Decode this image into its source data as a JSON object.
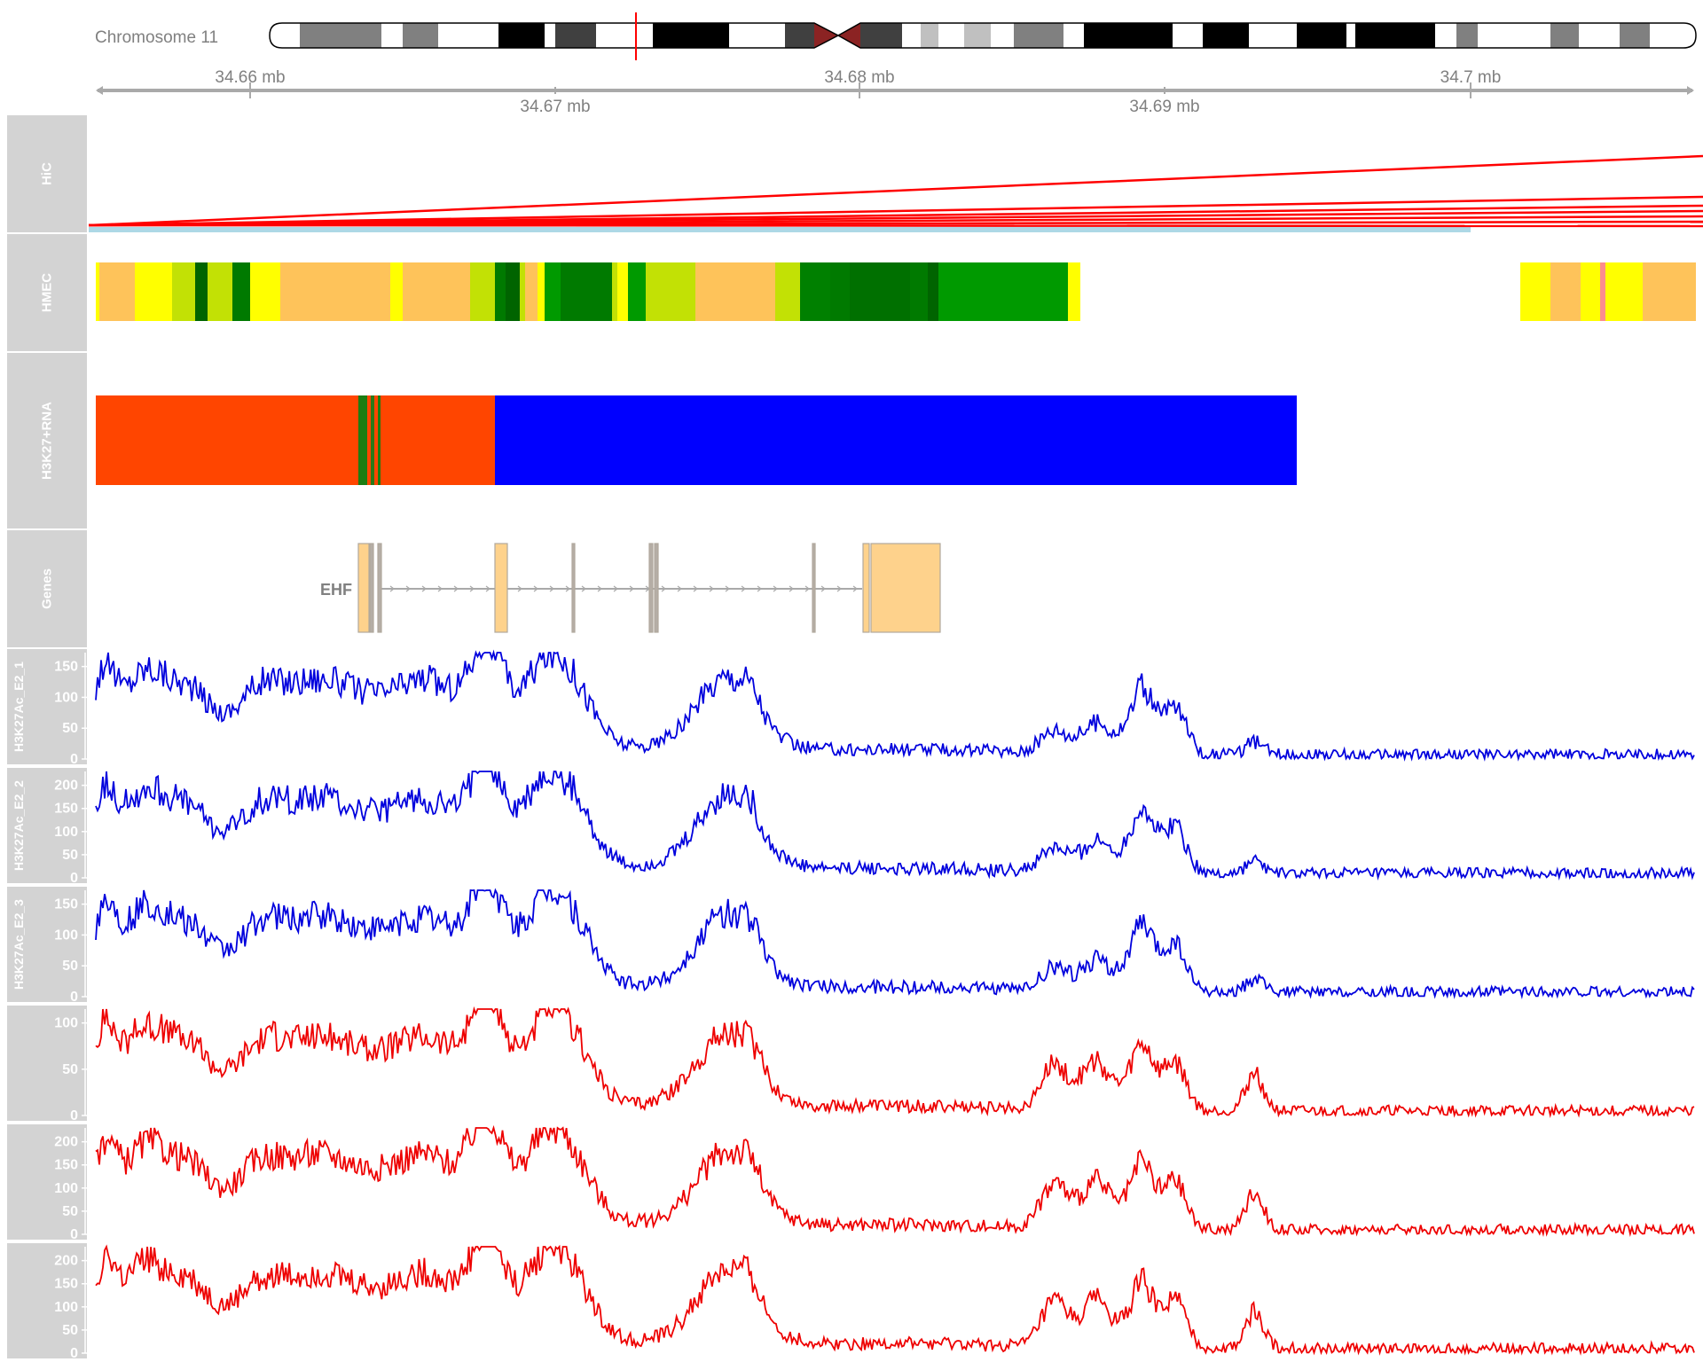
{
  "ideogram": {
    "chromosome_label": "Chromosome 11"
  },
  "axis": {
    "ticks_upper": [
      "34.66 mb",
      "34.68 mb",
      "34.7 mb"
    ],
    "ticks_lower": [
      "34.67 mb",
      "34.69 mb"
    ]
  },
  "tracks": {
    "hic": {
      "label": "HiC"
    },
    "hmec": {
      "label": "HMEC"
    },
    "h3k27_rna": {
      "label": "H3K27+RNA"
    },
    "genes": {
      "label": "Genes",
      "gene_name": "EHF"
    }
  },
  "signal_tracks": [
    {
      "label": "H3K27Ac_E2_1",
      "color": "#0000dd",
      "ticks": [
        "150",
        "100",
        "50",
        "0"
      ]
    },
    {
      "label": "H3K27Ac_E2_2",
      "color": "#0000dd",
      "ticks": [
        "200",
        "150",
        "100",
        "50",
        "0"
      ]
    },
    {
      "label": "H3K27Ac_E2_3",
      "color": "#0000dd",
      "ticks": [
        "150",
        "100",
        "50",
        "0"
      ]
    },
    {
      "label": "",
      "color": "#ee0000",
      "ticks": [
        "100",
        "50",
        "0"
      ]
    },
    {
      "label": "",
      "color": "#ee0000",
      "ticks": [
        "200",
        "150",
        "100",
        "50",
        "0"
      ]
    },
    {
      "label": "",
      "color": "#ee0000",
      "ticks": [
        "200",
        "150",
        "100",
        "50",
        "0"
      ]
    }
  ],
  "colors": {
    "hic_arc": "#ff0000",
    "hic_region": "#add8e6",
    "rna_orange": "#ff4500",
    "rna_blue": "#0000ff",
    "exon_fill": "#fed28c",
    "intron": "#a9a9a9",
    "chrom_marker": "#ff0000"
  }
}
